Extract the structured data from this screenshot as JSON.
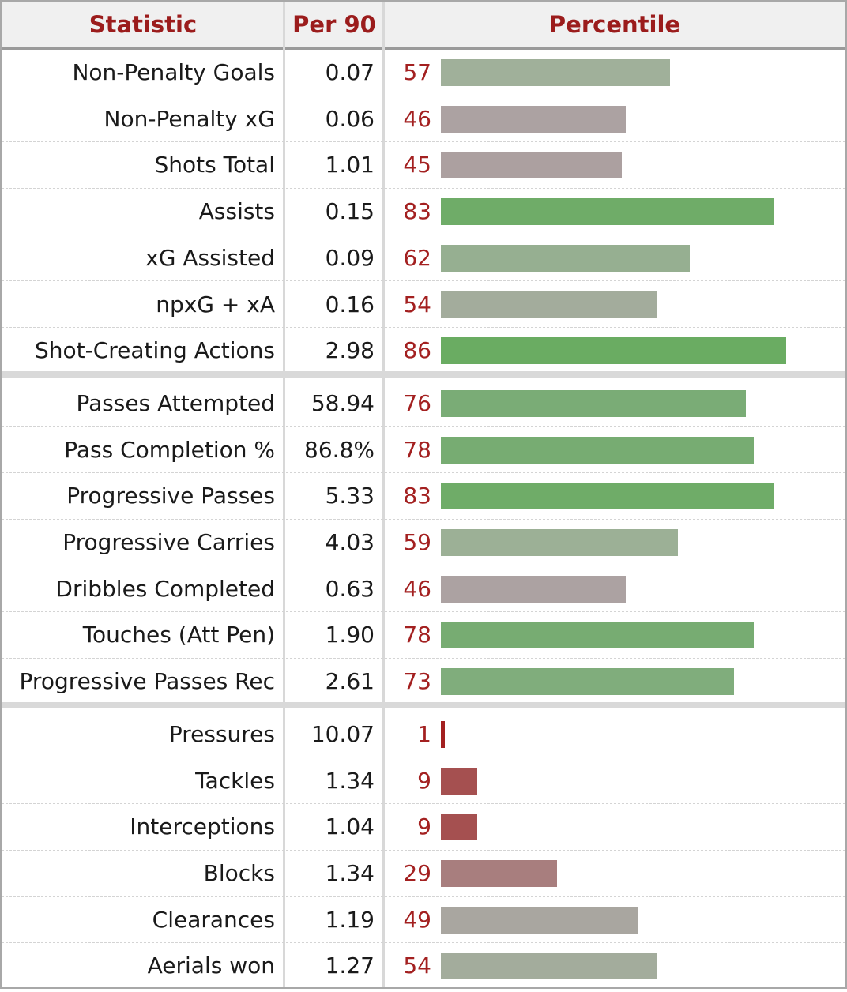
{
  "header": {
    "statistic": "Statistic",
    "per90": "Per 90",
    "percentile": "Percentile"
  },
  "colors": {
    "header_text": "#9b1c1c",
    "percentile_text": "#a32020",
    "bar_high": "#6aaa64",
    "bar_mid": "#a0b09a",
    "bar_neutral": "#aba2a2",
    "bar_low": "#a04848"
  },
  "chart_data": {
    "type": "bar",
    "x_range": [
      0,
      100
    ],
    "groups": [
      {
        "rows": [
          {
            "label": "Non-Penalty Goals",
            "per90": "0.07",
            "percentile": 57
          },
          {
            "label": "Non-Penalty xG",
            "per90": "0.06",
            "percentile": 46
          },
          {
            "label": "Shots Total",
            "per90": "1.01",
            "percentile": 45
          },
          {
            "label": "Assists",
            "per90": "0.15",
            "percentile": 83
          },
          {
            "label": "xG Assisted",
            "per90": "0.09",
            "percentile": 62
          },
          {
            "label": "npxG + xA",
            "per90": "0.16",
            "percentile": 54
          },
          {
            "label": "Shot-Creating Actions",
            "per90": "2.98",
            "percentile": 86
          }
        ]
      },
      {
        "rows": [
          {
            "label": "Passes Attempted",
            "per90": "58.94",
            "percentile": 76
          },
          {
            "label": "Pass Completion %",
            "per90": "86.8%",
            "percentile": 78
          },
          {
            "label": "Progressive Passes",
            "per90": "5.33",
            "percentile": 83
          },
          {
            "label": "Progressive Carries",
            "per90": "4.03",
            "percentile": 59
          },
          {
            "label": "Dribbles Completed",
            "per90": "0.63",
            "percentile": 46
          },
          {
            "label": "Touches (Att Pen)",
            "per90": "1.90",
            "percentile": 78
          },
          {
            "label": "Progressive Passes Rec",
            "per90": "2.61",
            "percentile": 73
          }
        ]
      },
      {
        "rows": [
          {
            "label": "Pressures",
            "per90": "10.07",
            "percentile": 1
          },
          {
            "label": "Tackles",
            "per90": "1.34",
            "percentile": 9
          },
          {
            "label": "Interceptions",
            "per90": "1.04",
            "percentile": 9
          },
          {
            "label": "Blocks",
            "per90": "1.34",
            "percentile": 29
          },
          {
            "label": "Clearances",
            "per90": "1.19",
            "percentile": 49
          },
          {
            "label": "Aerials won",
            "per90": "1.27",
            "percentile": 54
          }
        ]
      }
    ]
  }
}
